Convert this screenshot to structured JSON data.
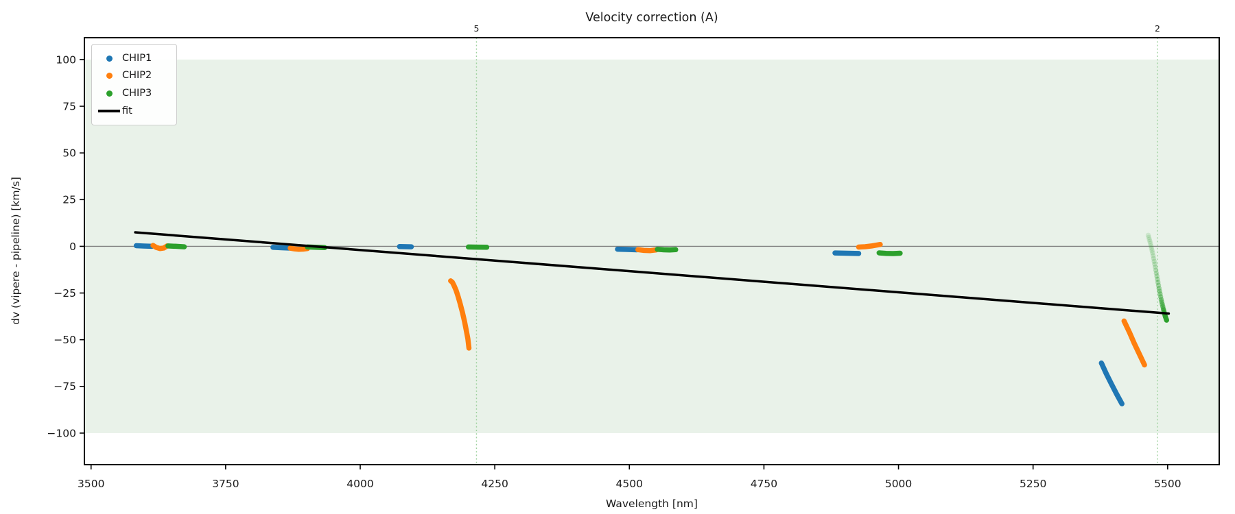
{
  "title": "Velocity correction (A)",
  "xlabel": "Wavelength [nm]",
  "ylabel": "dv (vipere - pipeline) [km/s]",
  "legend": {
    "items": [
      {
        "label": "CHIP1",
        "marker": "dot",
        "color": "#1f77b4"
      },
      {
        "label": "CHIP2",
        "marker": "dot",
        "color": "#ff7f0e"
      },
      {
        "label": "CHIP3",
        "marker": "dot",
        "color": "#2ca02c"
      },
      {
        "label": "fit",
        "marker": "line",
        "color": "#000000"
      }
    ]
  },
  "chart_data": {
    "type": "scatter",
    "title": "Velocity correction (A)",
    "xlabel": "Wavelength [nm]",
    "ylabel": "dv (vipere - pipeline) [km/s]",
    "grid": false,
    "legend_position": "upper-left",
    "xlim": [
      3487.6,
      5595.8
    ],
    "ylim": [
      -116.9,
      111.7
    ],
    "x_ticks": [
      {
        "v": 3500,
        "label": "3500"
      },
      {
        "v": 3750,
        "label": "3750"
      },
      {
        "v": 4000,
        "label": "4000"
      },
      {
        "v": 4250,
        "label": "4250"
      },
      {
        "v": 4500,
        "label": "4500"
      },
      {
        "v": 4750,
        "label": "4750"
      },
      {
        "v": 5000,
        "label": "5000"
      },
      {
        "v": 5250,
        "label": "5250"
      },
      {
        "v": 5500,
        "label": "5500"
      }
    ],
    "y_ticks": [
      {
        "v": 100,
        "label": "100"
      },
      {
        "v": 75,
        "label": "75"
      },
      {
        "v": 50,
        "label": "50"
      },
      {
        "v": 25,
        "label": "25"
      },
      {
        "v": 0,
        "label": "0"
      },
      {
        "v": -25,
        "label": "−25"
      },
      {
        "v": -50,
        "label": "−50"
      },
      {
        "v": -75,
        "label": "−75"
      },
      {
        "v": -100,
        "label": "−100"
      }
    ],
    "band": {
      "ymin": -100,
      "ymax": 100,
      "color": "#e9f2e9"
    },
    "zero_line": {
      "y": 0,
      "color": "#808080",
      "width": 1.3
    },
    "vlines": [
      {
        "x": 4216,
        "label": "5"
      },
      {
        "x": 5481,
        "label": "2"
      }
    ],
    "vline_color": "#9fd29f",
    "vline_label_color": "#3f9e3f",
    "series": [
      {
        "name": "CHIP1",
        "color": "#1f77b4",
        "width": 7.5,
        "kind": "marker-train",
        "segments": [
          {
            "points": [
              [
                3584,
                0.35
              ],
              [
                3598,
                0.15
              ],
              [
                3613,
                0.0
              ]
            ]
          },
          {
            "points": [
              [
                3838,
                -0.55
              ],
              [
                3854,
                -0.75
              ],
              [
                3870,
                -0.95
              ]
            ]
          },
          {
            "points": [
              [
                4073,
                -0.15
              ],
              [
                4095,
                -0.25
              ]
            ]
          },
          {
            "points": [
              [
                4478,
                -1.55
              ],
              [
                4496,
                -1.7
              ],
              [
                4514,
                -1.85
              ]
            ]
          },
          {
            "points": [
              [
                4882,
                -3.55
              ],
              [
                4904,
                -3.7
              ],
              [
                4926,
                -3.85
              ]
            ]
          },
          {
            "points": [
              [
                5377,
                -62.5
              ],
              [
                5386,
                -68.2
              ],
              [
                5395,
                -73.4
              ],
              [
                5405,
                -79.0
              ],
              [
                5415,
                -84.3
              ]
            ]
          }
        ]
      },
      {
        "name": "CHIP2",
        "color": "#ff7f0e",
        "width": 7.5,
        "kind": "marker-train",
        "segments": [
          {
            "points": [
              [
                3615,
                0.5
              ],
              [
                3621,
                -0.6
              ],
              [
                3628,
                -1.2
              ],
              [
                3635,
                -0.9
              ],
              [
                3641,
                0.2
              ]
            ]
          },
          {
            "points": [
              [
                3870,
                -1.0
              ],
              [
                3878,
                -1.4
              ],
              [
                3886,
                -1.6
              ],
              [
                3894,
                -1.5
              ],
              [
                3902,
                -1.2
              ]
            ]
          },
          {
            "points": [
              [
                4168,
                -18.5
              ],
              [
                4171,
                -19.2
              ],
              [
                4174,
                -20.8
              ],
              [
                4178,
                -23.5
              ],
              [
                4182,
                -27.0
              ],
              [
                4186,
                -31.0
              ],
              [
                4190,
                -35.5
              ],
              [
                4194,
                -40.5
              ],
              [
                4197,
                -45.0
              ],
              [
                4200,
                -49.5
              ],
              [
                4202,
                -54.5
              ]
            ]
          },
          {
            "points": [
              [
                4516,
                -1.8
              ],
              [
                4527,
                -2.2
              ],
              [
                4539,
                -2.3
              ],
              [
                4550,
                -1.9
              ]
            ]
          },
          {
            "points": [
              [
                4926,
                -0.4
              ],
              [
                4938,
                -0.2
              ],
              [
                4950,
                0.2
              ],
              [
                4958,
                0.6
              ],
              [
                4966,
                1.0
              ]
            ]
          },
          {
            "points": [
              [
                5419,
                -40.0
              ],
              [
                5429,
                -46.0
              ],
              [
                5438,
                -52.0
              ],
              [
                5448,
                -58.0
              ],
              [
                5457,
                -63.5
              ]
            ]
          }
        ]
      },
      {
        "name": "CHIP3",
        "color": "#2ca02c",
        "width": 7.5,
        "kind": "marker-train",
        "segments": [
          {
            "points": [
              [
                3643,
                0.2
              ],
              [
                3658,
                0.0
              ],
              [
                3673,
                -0.25
              ]
            ]
          },
          {
            "points": [
              [
                3902,
                -0.35
              ],
              [
                3918,
                -0.55
              ],
              [
                3934,
                -0.7
              ]
            ]
          },
          {
            "points": [
              [
                4201,
                -0.35
              ],
              [
                4218,
                -0.45
              ],
              [
                4235,
                -0.5
              ]
            ]
          },
          {
            "points": [
              [
                4552,
                -1.6
              ],
              [
                4564,
                -1.85
              ],
              [
                4575,
                -1.95
              ],
              [
                4586,
                -1.8
              ]
            ]
          },
          {
            "points": [
              [
                4964,
                -3.5
              ],
              [
                4977,
                -3.8
              ],
              [
                4990,
                -3.9
              ],
              [
                5003,
                -3.7
              ]
            ]
          },
          {
            "fade": true,
            "points": [
              [
                5464,
                5.9
              ],
              [
                5468,
                1.5
              ],
              [
                5472,
                -3.5
              ],
              [
                5476,
                -9.5
              ],
              [
                5480,
                -16.0
              ],
              [
                5484,
                -22.5
              ],
              [
                5488,
                -28.5
              ],
              [
                5492,
                -33.5
              ],
              [
                5495,
                -37.0
              ],
              [
                5498,
                -39.5
              ]
            ]
          }
        ]
      },
      {
        "name": "fit",
        "color": "#000000",
        "width": 3.5,
        "kind": "line",
        "segments": [
          {
            "points": [
              [
                3582,
                7.5
              ],
              [
                5502,
                -36.0
              ]
            ]
          }
        ]
      }
    ]
  }
}
